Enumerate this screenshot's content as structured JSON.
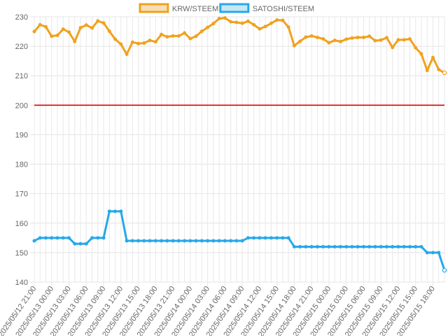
{
  "chart_data": {
    "type": "line",
    "title": "",
    "xlabel": "",
    "ylabel": "",
    "ylim": [
      140,
      230
    ],
    "y_ticks": [
      140,
      150,
      160,
      170,
      180,
      190,
      200,
      210,
      220,
      230
    ],
    "grid": true,
    "legend_position": "top-center",
    "x_tick_labels": [
      "2025/05/12 21:00",
      "2025/05/13 00:00",
      "2025/05/13 03:00",
      "2025/05/13 06:00",
      "2025/05/13 09:00",
      "2025/05/13 12:00",
      "2025/05/13 15:00",
      "2025/05/13 18:00",
      "2025/05/13 21:00",
      "2025/05/14 00:00",
      "2025/05/14 03:00",
      "2025/05/14 06:00",
      "2025/05/14 09:00",
      "2025/05/14 12:00",
      "2025/05/14 15:00",
      "2025/05/14 18:00",
      "2025/05/14 21:00",
      "2025/05/15 00:00",
      "2025/05/15 03:00",
      "2025/05/15 06:00",
      "2025/05/15 09:00",
      "2025/05/15 12:00",
      "2025/05/15 15:00",
      "2025/05/15 18:00"
    ],
    "points_per_tick": 3,
    "reference_line": {
      "value": 200,
      "color": "#dd0000"
    },
    "series": [
      {
        "name": "KRW/STEEM",
        "color": "#f0a21d",
        "fill": "#f6dfb8",
        "values": [
          225,
          227.3,
          226.6,
          223.4,
          223.7,
          225.8,
          224.8,
          221.6,
          226.3,
          227.2,
          226.2,
          228.6,
          227.9,
          225.1,
          222.4,
          220.7,
          217.3,
          221.4,
          220.9,
          221.1,
          222,
          221.5,
          224,
          223.2,
          223.5,
          223.5,
          224.5,
          222.6,
          223.4,
          225.1,
          226.4,
          227.7,
          229.4,
          229.6,
          228.3,
          228.1,
          227.8,
          228.5,
          227.3,
          225.9,
          226.7,
          227.8,
          228.9,
          228.8,
          226.5,
          220.2,
          221.7,
          223.1,
          223.5,
          223,
          222.5,
          221.2,
          222,
          221.6,
          222.4,
          222.8,
          223,
          223,
          223.4,
          221.9,
          222.1,
          222.9,
          219.6,
          222.2,
          222.2,
          222.5,
          219.5,
          217.4,
          211.8,
          216.2,
          212.1,
          211
        ]
      },
      {
        "name": "SATOSHI/STEEM",
        "color": "#26a8ea",
        "fill": "#c9e6f7",
        "values": [
          154,
          155,
          155,
          155,
          155,
          155,
          155,
          153,
          153,
          153,
          155,
          155,
          155,
          164,
          164,
          164,
          154,
          154,
          154,
          154,
          154,
          154,
          154,
          154,
          154,
          154,
          154,
          154,
          154,
          154,
          154,
          154,
          154,
          154,
          154,
          154,
          154,
          155,
          155,
          155,
          155,
          155,
          155,
          155,
          155,
          152,
          152,
          152,
          152,
          152,
          152,
          152,
          152,
          152,
          152,
          152,
          152,
          152,
          152,
          152,
          152,
          152,
          152,
          152,
          152,
          152,
          152,
          152,
          150,
          150,
          150,
          144
        ]
      }
    ]
  }
}
